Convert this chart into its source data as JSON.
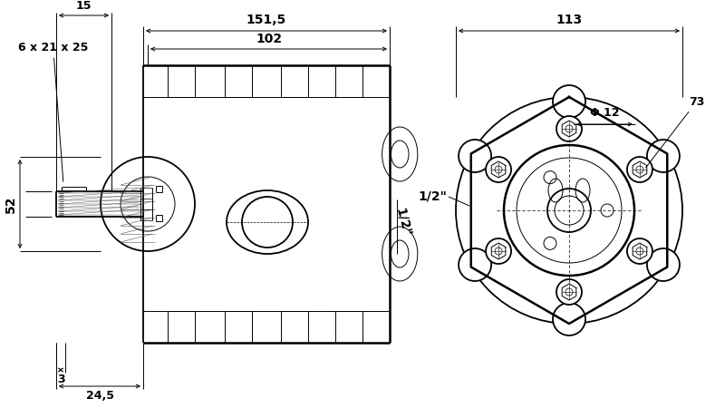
{
  "bg_color": "#ffffff",
  "line_color": "#000000",
  "dimensions": {
    "dim_151_5": "151,5",
    "dim_102": "102",
    "dim_15": "15",
    "dim_52": "52",
    "dim_3": "3",
    "dim_24_5": "24,5",
    "dim_6x21x25": "6 x 21 x 25",
    "dim_113": "113",
    "dim_phi12": "Φ 12",
    "dim_73": "73",
    "dim_half_inch_side": "1/2\"",
    "dim_half_inch_front": "1/2\""
  },
  "lw_main": 1.3,
  "lw_thin": 0.7,
  "lw_dim": 0.7,
  "lw_thick": 1.8
}
